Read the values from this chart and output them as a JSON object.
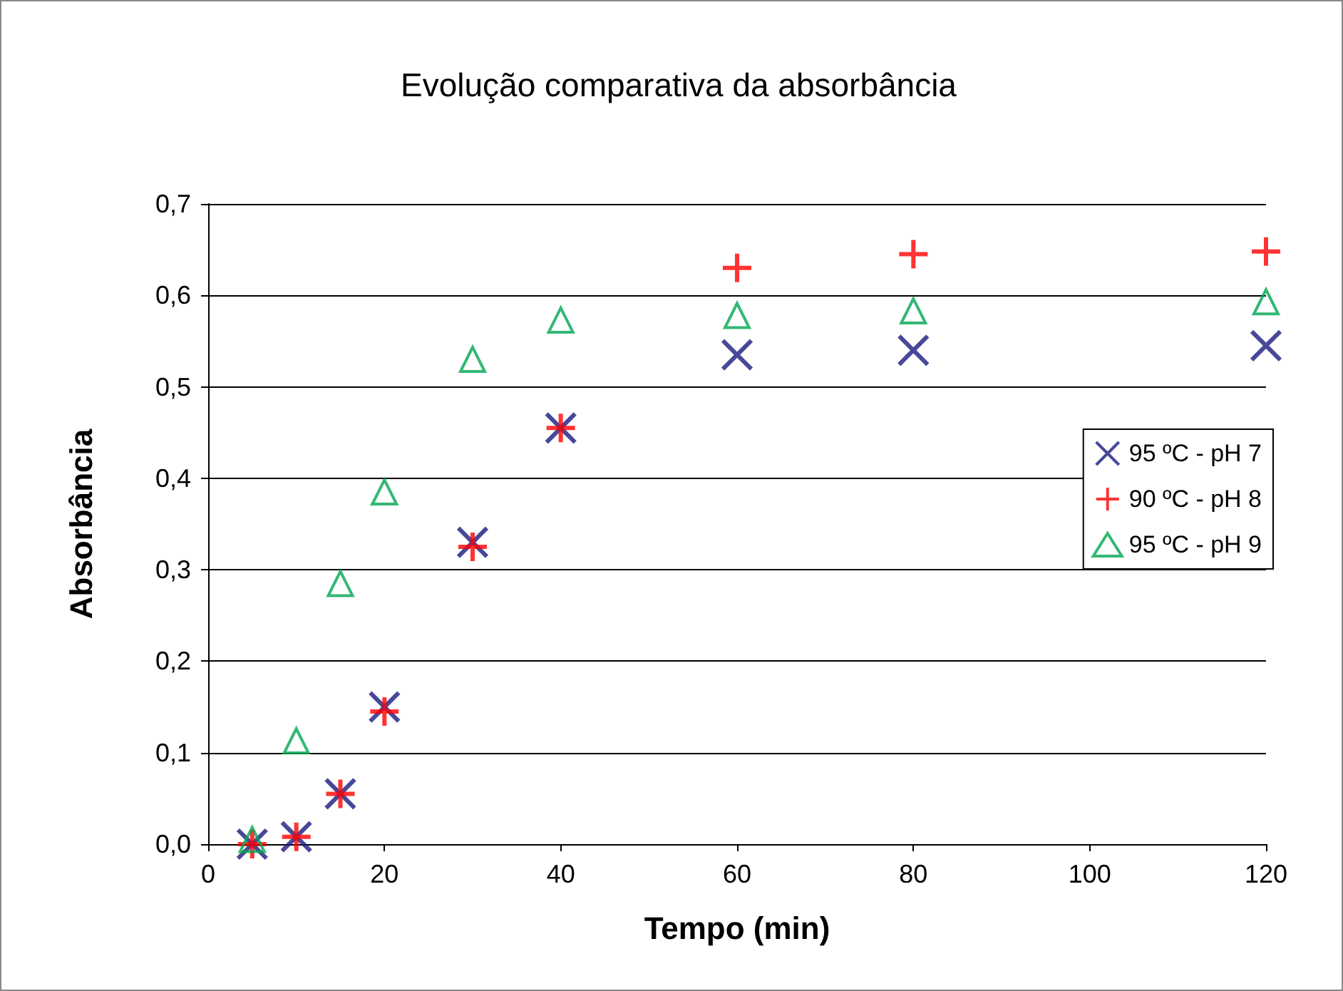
{
  "chart_data": {
    "type": "scatter",
    "title": "Evolução comparativa da absorbância",
    "xlabel": "Tempo (min)",
    "ylabel": "Absorbância",
    "x": [
      5,
      10,
      15,
      20,
      30,
      40,
      60,
      80,
      120
    ],
    "series": [
      {
        "name": "95 ºC - pH 7",
        "color": "#1a1a80",
        "marker": "cross",
        "values": [
          0.0,
          0.008,
          0.055,
          0.15,
          0.33,
          0.455,
          0.535,
          0.54,
          0.545
        ]
      },
      {
        "name": "90 ºC - pH 8",
        "color": "#ff0000",
        "marker": "plus",
        "values": [
          0.0,
          0.008,
          0.055,
          0.145,
          0.325,
          0.455,
          0.63,
          0.645,
          0.648
        ]
      },
      {
        "name": "95 ºC - pH 9",
        "color": "#00a651",
        "marker": "triangle",
        "values": [
          0.005,
          0.113,
          0.285,
          0.385,
          0.53,
          0.573,
          0.578,
          0.583,
          0.593
        ]
      }
    ],
    "xlim": [
      0,
      120
    ],
    "xticks": [
      0,
      20,
      40,
      60,
      80,
      100,
      120
    ],
    "ylim": [
      0,
      0.7
    ],
    "yticks": [
      {
        "value": 0,
        "label": "0,0"
      },
      {
        "value": 0.1,
        "label": "0,1"
      },
      {
        "value": 0.2,
        "label": "0,2"
      },
      {
        "value": 0.3,
        "label": "0,3"
      },
      {
        "value": 0.4,
        "label": "0,4"
      },
      {
        "value": 0.5,
        "label": "0,5"
      },
      {
        "value": 0.6,
        "label": "0,6"
      },
      {
        "value": 0.7,
        "label": "0,7"
      }
    ],
    "grid": "y",
    "legend": "right"
  }
}
